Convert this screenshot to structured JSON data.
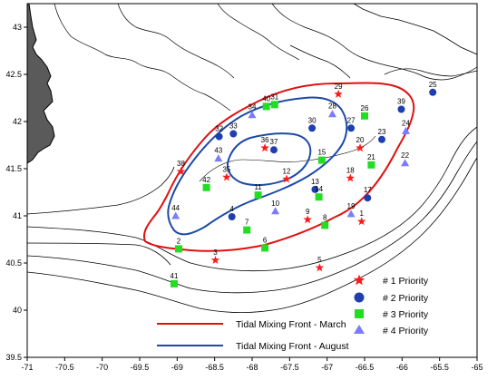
{
  "axes": {
    "x_ticks": [
      "-71",
      "-70.5",
      "-70",
      "-69.5",
      "-69",
      "-68.5",
      "-68",
      "-67.5",
      "-67",
      "-66.5",
      "-66",
      "-65.5",
      "-65"
    ],
    "y_ticks": [
      "43",
      "42.5",
      "42",
      "41.5",
      "41",
      "40.5",
      "40",
      "39.5"
    ]
  },
  "colors": {
    "priority1": "#ff1a1a",
    "priority2": "#1f3fb0",
    "priority3": "#22dd22",
    "priority4": "#7b7bff",
    "front_march": "#e01010",
    "front_august": "#1c4aa8",
    "land": "#5a5a5a"
  },
  "legend": {
    "priority1": "# 1 Priority",
    "priority2": "# 2 Priority",
    "priority3": "# 3 Priority",
    "priority4": "# 4 Priority",
    "front_march": "Tidal Mixing Front - March",
    "front_august": "Tidal Mixing Front - August"
  },
  "stations": [
    {
      "id": "1",
      "priority": 1,
      "lon": -66.54,
      "lat": 40.94
    },
    {
      "id": "2",
      "priority": 3,
      "lon": -68.98,
      "lat": 40.65
    },
    {
      "id": "3",
      "priority": 1,
      "lon": -68.49,
      "lat": 40.53
    },
    {
      "id": "4",
      "priority": 2,
      "lon": -68.27,
      "lat": 40.99
    },
    {
      "id": "5",
      "priority": 1,
      "lon": -67.1,
      "lat": 40.45
    },
    {
      "id": "6",
      "priority": 3,
      "lon": -67.83,
      "lat": 40.66
    },
    {
      "id": "7",
      "priority": 3,
      "lon": -68.07,
      "lat": 40.85
    },
    {
      "id": "8",
      "priority": 3,
      "lon": -67.03,
      "lat": 40.9
    },
    {
      "id": "9",
      "priority": 1,
      "lon": -67.26,
      "lat": 40.96
    },
    {
      "id": "10",
      "priority": 4,
      "lon": -67.69,
      "lat": 41.05
    },
    {
      "id": "11",
      "priority": 3,
      "lon": -67.92,
      "lat": 41.22
    },
    {
      "id": "12",
      "priority": 1,
      "lon": -67.54,
      "lat": 41.39
    },
    {
      "id": "13",
      "priority": 2,
      "lon": -67.16,
      "lat": 41.28
    },
    {
      "id": "14",
      "priority": 3,
      "lon": -67.11,
      "lat": 41.2
    },
    {
      "id": "15",
      "priority": 3,
      "lon": -67.07,
      "lat": 41.59
    },
    {
      "id": "17",
      "priority": 2,
      "lon": -66.46,
      "lat": 41.19
    },
    {
      "id": "18",
      "priority": 1,
      "lon": -66.69,
      "lat": 41.4
    },
    {
      "id": "19",
      "priority": 4,
      "lon": -66.68,
      "lat": 41.02
    },
    {
      "id": "20",
      "priority": 1,
      "lon": -66.56,
      "lat": 41.72
    },
    {
      "id": "21",
      "priority": 3,
      "lon": -66.41,
      "lat": 41.54
    },
    {
      "id": "22",
      "priority": 4,
      "lon": -65.96,
      "lat": 41.56
    },
    {
      "id": "23",
      "priority": 2,
      "lon": -66.27,
      "lat": 41.81
    },
    {
      "id": "24",
      "priority": 4,
      "lon": -65.95,
      "lat": 41.9
    },
    {
      "id": "25",
      "priority": 2,
      "lon": -65.59,
      "lat": 42.31
    },
    {
      "id": "26",
      "priority": 3,
      "lon": -66.5,
      "lat": 42.06
    },
    {
      "id": "27",
      "priority": 2,
      "lon": -66.68,
      "lat": 41.93
    },
    {
      "id": "28",
      "priority": 4,
      "lon": -66.93,
      "lat": 42.08
    },
    {
      "id": "29",
      "priority": 1,
      "lon": -66.85,
      "lat": 42.29
    },
    {
      "id": "30",
      "priority": 2,
      "lon": -67.2,
      "lat": 41.93
    },
    {
      "id": "31",
      "priority": 3,
      "lon": -67.7,
      "lat": 42.18
    },
    {
      "id": "32",
      "priority": 2,
      "lon": -68.44,
      "lat": 41.84
    },
    {
      "id": "33",
      "priority": 2,
      "lon": -68.25,
      "lat": 41.87
    },
    {
      "id": "34",
      "priority": 4,
      "lon": -68.0,
      "lat": 42.07
    },
    {
      "id": "35",
      "priority": 1,
      "lon": -68.34,
      "lat": 41.41
    },
    {
      "id": "36",
      "priority": 1,
      "lon": -67.83,
      "lat": 41.72
    },
    {
      "id": "37",
      "priority": 2,
      "lon": -67.71,
      "lat": 41.7
    },
    {
      "id": "38",
      "priority": 1,
      "lon": -68.95,
      "lat": 41.47
    },
    {
      "id": "39",
      "priority": 2,
      "lon": -66.01,
      "lat": 42.13
    },
    {
      "id": "40",
      "priority": 3,
      "lon": -67.81,
      "lat": 42.16
    },
    {
      "id": "41",
      "priority": 3,
      "lon": -69.04,
      "lat": 40.28
    },
    {
      "id": "42",
      "priority": 3,
      "lon": -68.61,
      "lat": 41.3
    },
    {
      "id": "43",
      "priority": 4,
      "lon": -68.45,
      "lat": 41.61
    },
    {
      "id": "44",
      "priority": 4,
      "lon": -69.02,
      "lat": 41.0
    }
  ]
}
